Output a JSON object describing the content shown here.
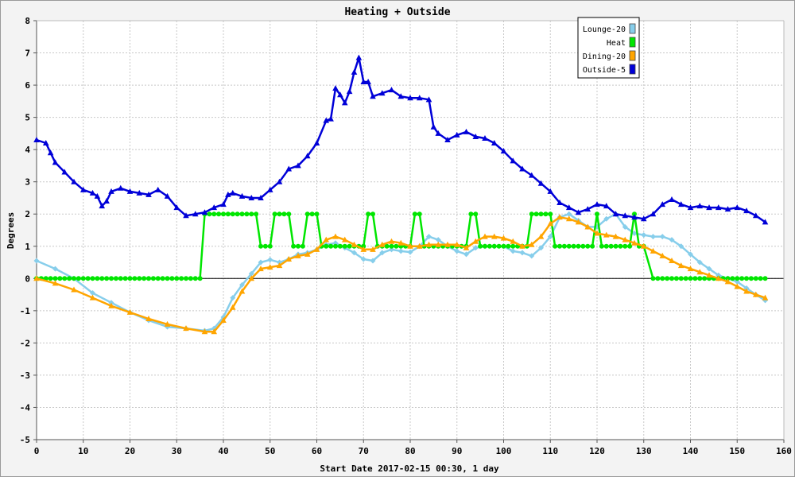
{
  "chart_data": {
    "type": "line",
    "title": "Heating + Outside",
    "xlabel": "Start Date 2017-02-15 00:30, 1 day",
    "ylabel": "Degrees",
    "xlim": [
      0,
      160
    ],
    "ylim": [
      -5,
      8
    ],
    "x_ticks": [
      "0",
      "10",
      "20",
      "30",
      "40",
      "50",
      "60",
      "70",
      "80",
      "90",
      "100",
      "110",
      "120",
      "130",
      "140",
      "150",
      "160"
    ],
    "y_ticks": [
      "-5",
      "-4",
      "-3",
      "-2",
      "-1",
      "0",
      "1",
      "2",
      "3",
      "4",
      "5",
      "6",
      "7",
      "8"
    ],
    "grid": true,
    "legend_position": "top-right",
    "series": [
      {
        "name": "Lounge-20",
        "color": "#87ceeb",
        "marker": "diamond",
        "points": [
          [
            0,
            0.55
          ],
          [
            4,
            0.3
          ],
          [
            8,
            0.0
          ],
          [
            12,
            -0.45
          ],
          [
            16,
            -0.75
          ],
          [
            20,
            -1.05
          ],
          [
            24,
            -1.3
          ],
          [
            28,
            -1.5
          ],
          [
            32,
            -1.55
          ],
          [
            36,
            -1.62
          ],
          [
            38,
            -1.55
          ],
          [
            40,
            -1.2
          ],
          [
            42,
            -0.6
          ],
          [
            44,
            -0.2
          ],
          [
            46,
            0.15
          ],
          [
            48,
            0.5
          ],
          [
            50,
            0.58
          ],
          [
            52,
            0.5
          ],
          [
            54,
            0.6
          ],
          [
            56,
            0.75
          ],
          [
            58,
            0.8
          ],
          [
            60,
            0.9
          ],
          [
            62,
            1.05
          ],
          [
            64,
            1.1
          ],
          [
            66,
            0.95
          ],
          [
            68,
            0.8
          ],
          [
            70,
            0.6
          ],
          [
            72,
            0.55
          ],
          [
            74,
            0.8
          ],
          [
            76,
            0.9
          ],
          [
            78,
            0.85
          ],
          [
            80,
            0.82
          ],
          [
            82,
            1.0
          ],
          [
            84,
            1.3
          ],
          [
            86,
            1.2
          ],
          [
            88,
            1.0
          ],
          [
            90,
            0.85
          ],
          [
            92,
            0.75
          ],
          [
            94,
            0.95
          ],
          [
            96,
            1.0
          ],
          [
            98,
            1.0
          ],
          [
            100,
            1.0
          ],
          [
            102,
            0.85
          ],
          [
            104,
            0.8
          ],
          [
            106,
            0.7
          ],
          [
            108,
            0.95
          ],
          [
            110,
            1.3
          ],
          [
            112,
            1.9
          ],
          [
            114,
            2.0
          ],
          [
            116,
            1.8
          ],
          [
            118,
            1.6
          ],
          [
            120,
            1.6
          ],
          [
            122,
            1.85
          ],
          [
            124,
            2.0
          ],
          [
            126,
            1.6
          ],
          [
            128,
            1.4
          ],
          [
            130,
            1.35
          ],
          [
            132,
            1.3
          ],
          [
            134,
            1.3
          ],
          [
            136,
            1.2
          ],
          [
            138,
            1.0
          ],
          [
            140,
            0.75
          ],
          [
            142,
            0.5
          ],
          [
            144,
            0.3
          ],
          [
            146,
            0.1
          ],
          [
            148,
            0.0
          ],
          [
            150,
            -0.1
          ],
          [
            152,
            -0.3
          ],
          [
            154,
            -0.5
          ],
          [
            156,
            -0.68
          ]
        ]
      },
      {
        "name": "Heat",
        "color": "#00e600",
        "marker": "circle",
        "points": [
          [
            0,
            0
          ],
          [
            35,
            0
          ],
          [
            36,
            2
          ],
          [
            47,
            2
          ],
          [
            48,
            1
          ],
          [
            50,
            1
          ],
          [
            51,
            2
          ],
          [
            54,
            2
          ],
          [
            55,
            1
          ],
          [
            57,
            1
          ],
          [
            58,
            2
          ],
          [
            60,
            2
          ],
          [
            61,
            1
          ],
          [
            70,
            1
          ],
          [
            71,
            2
          ],
          [
            72,
            2
          ],
          [
            73,
            1
          ],
          [
            80,
            1
          ],
          [
            81,
            2
          ],
          [
            82,
            2
          ],
          [
            83,
            1
          ],
          [
            92,
            1
          ],
          [
            93,
            2
          ],
          [
            94,
            2
          ],
          [
            95,
            1
          ],
          [
            105,
            1
          ],
          [
            106,
            2
          ],
          [
            110,
            2
          ],
          [
            111,
            1
          ],
          [
            119,
            1
          ],
          [
            120,
            2
          ],
          [
            121,
            1
          ],
          [
            127,
            1
          ],
          [
            128,
            2
          ],
          [
            129,
            1
          ],
          [
            130,
            1
          ],
          [
            132,
            0
          ],
          [
            156,
            0
          ]
        ]
      },
      {
        "name": "Dining-20",
        "color": "#ffa500",
        "marker": "triangle",
        "points": [
          [
            0,
            0
          ],
          [
            4,
            -0.15
          ],
          [
            8,
            -0.35
          ],
          [
            12,
            -0.6
          ],
          [
            16,
            -0.85
          ],
          [
            20,
            -1.05
          ],
          [
            24,
            -1.25
          ],
          [
            28,
            -1.42
          ],
          [
            32,
            -1.55
          ],
          [
            36,
            -1.65
          ],
          [
            38,
            -1.65
          ],
          [
            40,
            -1.3
          ],
          [
            42,
            -0.9
          ],
          [
            44,
            -0.4
          ],
          [
            46,
            0.0
          ],
          [
            48,
            0.3
          ],
          [
            50,
            0.35
          ],
          [
            52,
            0.4
          ],
          [
            54,
            0.6
          ],
          [
            56,
            0.7
          ],
          [
            58,
            0.75
          ],
          [
            60,
            0.9
          ],
          [
            62,
            1.2
          ],
          [
            64,
            1.3
          ],
          [
            66,
            1.2
          ],
          [
            68,
            1.05
          ],
          [
            70,
            0.9
          ],
          [
            72,
            0.9
          ],
          [
            74,
            1.05
          ],
          [
            76,
            1.15
          ],
          [
            78,
            1.1
          ],
          [
            80,
            1.0
          ],
          [
            82,
            1.0
          ],
          [
            84,
            1.05
          ],
          [
            86,
            1.05
          ],
          [
            88,
            1.05
          ],
          [
            90,
            1.05
          ],
          [
            92,
            0.95
          ],
          [
            94,
            1.15
          ],
          [
            96,
            1.3
          ],
          [
            98,
            1.3
          ],
          [
            100,
            1.25
          ],
          [
            102,
            1.15
          ],
          [
            104,
            1.0
          ],
          [
            106,
            1.05
          ],
          [
            108,
            1.3
          ],
          [
            110,
            1.7
          ],
          [
            112,
            1.9
          ],
          [
            114,
            1.85
          ],
          [
            116,
            1.75
          ],
          [
            118,
            1.6
          ],
          [
            120,
            1.4
          ],
          [
            122,
            1.35
          ],
          [
            124,
            1.3
          ],
          [
            126,
            1.2
          ],
          [
            128,
            1.1
          ],
          [
            130,
            1.0
          ],
          [
            132,
            0.85
          ],
          [
            134,
            0.7
          ],
          [
            136,
            0.55
          ],
          [
            138,
            0.4
          ],
          [
            140,
            0.3
          ],
          [
            142,
            0.2
          ],
          [
            144,
            0.1
          ],
          [
            146,
            0.0
          ],
          [
            148,
            -0.1
          ],
          [
            150,
            -0.25
          ],
          [
            152,
            -0.4
          ],
          [
            154,
            -0.5
          ],
          [
            156,
            -0.6
          ]
        ]
      },
      {
        "name": "Outside-5",
        "color": "#0000d8",
        "marker": "triangle",
        "points": [
          [
            0,
            4.3
          ],
          [
            2,
            4.2
          ],
          [
            3,
            3.9
          ],
          [
            4,
            3.6
          ],
          [
            6,
            3.3
          ],
          [
            8,
            3.0
          ],
          [
            10,
            2.75
          ],
          [
            12,
            2.65
          ],
          [
            13,
            2.55
          ],
          [
            14,
            2.25
          ],
          [
            15,
            2.4
          ],
          [
            16,
            2.7
          ],
          [
            18,
            2.8
          ],
          [
            20,
            2.7
          ],
          [
            22,
            2.65
          ],
          [
            24,
            2.6
          ],
          [
            26,
            2.75
          ],
          [
            28,
            2.55
          ],
          [
            30,
            2.2
          ],
          [
            32,
            1.95
          ],
          [
            34,
            2.0
          ],
          [
            36,
            2.05
          ],
          [
            38,
            2.2
          ],
          [
            40,
            2.3
          ],
          [
            41,
            2.6
          ],
          [
            42,
            2.65
          ],
          [
            44,
            2.55
          ],
          [
            46,
            2.5
          ],
          [
            48,
            2.5
          ],
          [
            50,
            2.75
          ],
          [
            52,
            3.0
          ],
          [
            54,
            3.4
          ],
          [
            56,
            3.5
          ],
          [
            58,
            3.8
          ],
          [
            60,
            4.2
          ],
          [
            62,
            4.9
          ],
          [
            63,
            4.95
          ],
          [
            64,
            5.9
          ],
          [
            65,
            5.7
          ],
          [
            66,
            5.45
          ],
          [
            67,
            5.8
          ],
          [
            68,
            6.4
          ],
          [
            69,
            6.85
          ],
          [
            70,
            6.1
          ],
          [
            71,
            6.1
          ],
          [
            72,
            5.65
          ],
          [
            74,
            5.75
          ],
          [
            76,
            5.85
          ],
          [
            78,
            5.65
          ],
          [
            80,
            5.6
          ],
          [
            82,
            5.6
          ],
          [
            84,
            5.55
          ],
          [
            85,
            4.7
          ],
          [
            86,
            4.5
          ],
          [
            88,
            4.3
          ],
          [
            90,
            4.45
          ],
          [
            92,
            4.55
          ],
          [
            94,
            4.4
          ],
          [
            96,
            4.35
          ],
          [
            98,
            4.2
          ],
          [
            100,
            3.95
          ],
          [
            102,
            3.65
          ],
          [
            104,
            3.4
          ],
          [
            106,
            3.2
          ],
          [
            108,
            2.95
          ],
          [
            110,
            2.7
          ],
          [
            112,
            2.35
          ],
          [
            114,
            2.2
          ],
          [
            116,
            2.05
          ],
          [
            118,
            2.15
          ],
          [
            120,
            2.3
          ],
          [
            122,
            2.25
          ],
          [
            124,
            2.0
          ],
          [
            126,
            1.95
          ],
          [
            128,
            1.9
          ],
          [
            130,
            1.85
          ],
          [
            132,
            2.0
          ],
          [
            134,
            2.3
          ],
          [
            136,
            2.45
          ],
          [
            138,
            2.3
          ],
          [
            140,
            2.2
          ],
          [
            142,
            2.25
          ],
          [
            144,
            2.2
          ],
          [
            146,
            2.2
          ],
          [
            148,
            2.15
          ],
          [
            150,
            2.2
          ],
          [
            152,
            2.1
          ],
          [
            154,
            1.95
          ],
          [
            156,
            1.75
          ]
        ]
      }
    ]
  }
}
